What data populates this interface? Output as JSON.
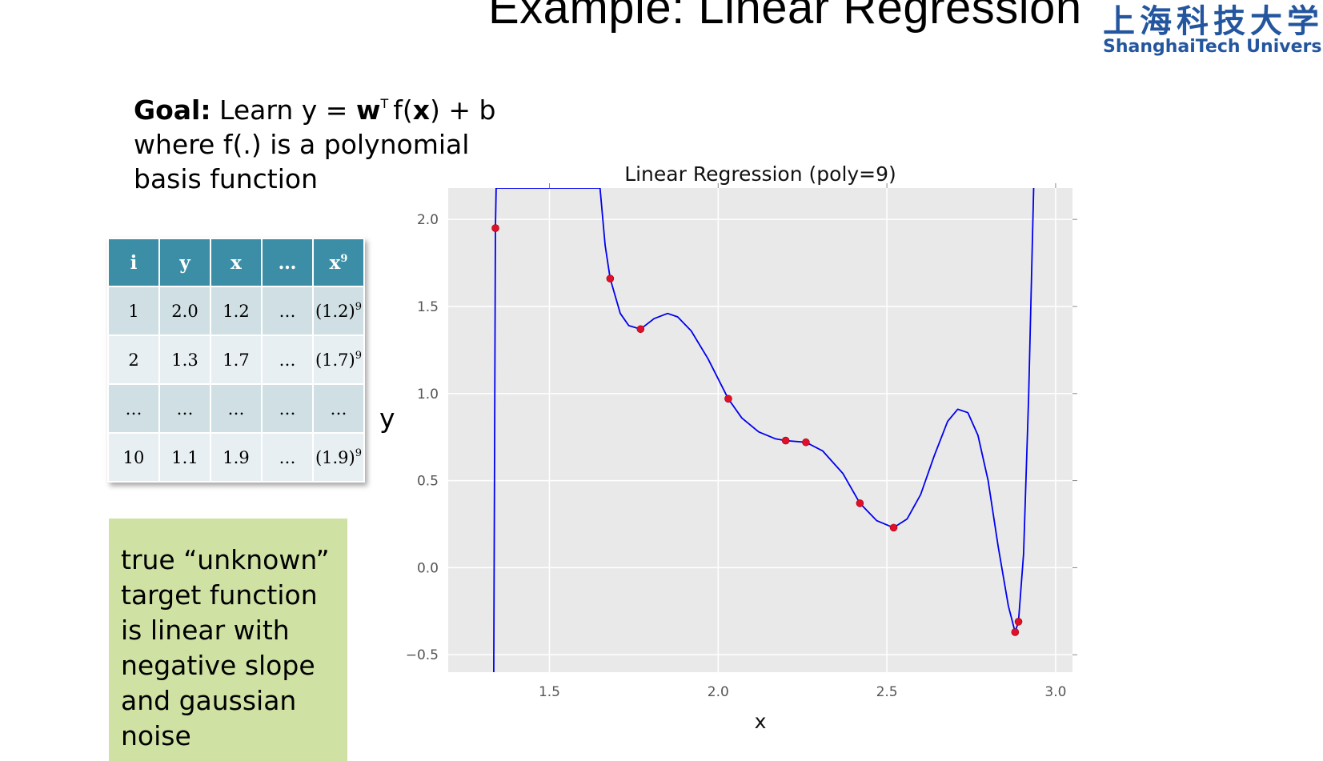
{
  "slide": {
    "title": "Example: Linear Regression",
    "logo_cn": "上海科技大学",
    "logo_en": "ShanghaiTech University"
  },
  "goal": {
    "label": "Goal:",
    "line1_a": "Learn y = ",
    "line1_w": "w",
    "line1_t": "T",
    "line1_b": "f(",
    "line1_x": "x",
    "line1_c": ") + b",
    "line2": "where f(.) is a polynomial",
    "line3": "basis function"
  },
  "table": {
    "headers": [
      "i",
      "y",
      "x",
      "…",
      "x"
    ],
    "header_x9_sup": "9",
    "rows": [
      [
        "1",
        "2.0",
        "1.2",
        "…",
        "(1.2)"
      ],
      [
        "2",
        "1.3",
        "1.7",
        "…",
        "(1.7)"
      ],
      [
        "…",
        "…",
        "…",
        "…",
        "…"
      ],
      [
        "10",
        "1.1",
        "1.9",
        "…",
        "(1.9)"
      ]
    ],
    "power_sup": "9"
  },
  "note": {
    "text": "true “unknown” target function is linear with negative slope and gaussian noise"
  },
  "outer_ylabel": "y",
  "chart_data": {
    "type": "scatter",
    "title": "Linear Regression (poly=9)",
    "xlabel": "x",
    "ylabel": "",
    "xlim": [
      1.2,
      3.05
    ],
    "ylim": [
      -0.6,
      2.18
    ],
    "xticks": [
      1.5,
      2.0,
      2.5,
      3.0
    ],
    "xtick_labels": [
      "1.5",
      "2.0",
      "2.5",
      "3.0"
    ],
    "yticks": [
      -0.5,
      0.0,
      0.5,
      1.0,
      1.5,
      2.0
    ],
    "ytick_labels": [
      "−0.5",
      "0.0",
      "0.5",
      "1.0",
      "1.5",
      "2.0"
    ],
    "grid": true,
    "background": "#e9e9e9",
    "point_color": "#e0102a",
    "line_color": "#0000ee",
    "points": [
      {
        "x": 1.34,
        "y": 1.95
      },
      {
        "x": 1.68,
        "y": 1.66
      },
      {
        "x": 1.77,
        "y": 1.37
      },
      {
        "x": 2.03,
        "y": 0.97
      },
      {
        "x": 2.2,
        "y": 0.73
      },
      {
        "x": 2.26,
        "y": 0.72
      },
      {
        "x": 2.42,
        "y": 0.37
      },
      {
        "x": 2.52,
        "y": 0.23
      },
      {
        "x": 2.88,
        "y": -0.37
      },
      {
        "x": 2.89,
        "y": -0.31
      }
    ],
    "fit_curve": [
      {
        "x": 1.335,
        "y": -0.6
      },
      {
        "x": 1.34,
        "y": 1.95
      },
      {
        "x": 1.342,
        "y": 2.18
      },
      {
        "x": 1.65,
        "y": 2.18
      },
      {
        "x": 1.665,
        "y": 1.85
      },
      {
        "x": 1.68,
        "y": 1.66
      },
      {
        "x": 1.71,
        "y": 1.46
      },
      {
        "x": 1.735,
        "y": 1.39
      },
      {
        "x": 1.77,
        "y": 1.37
      },
      {
        "x": 1.81,
        "y": 1.43
      },
      {
        "x": 1.85,
        "y": 1.46
      },
      {
        "x": 1.88,
        "y": 1.44
      },
      {
        "x": 1.92,
        "y": 1.36
      },
      {
        "x": 1.97,
        "y": 1.2
      },
      {
        "x": 2.03,
        "y": 0.97
      },
      {
        "x": 2.07,
        "y": 0.86
      },
      {
        "x": 2.12,
        "y": 0.78
      },
      {
        "x": 2.17,
        "y": 0.74
      },
      {
        "x": 2.2,
        "y": 0.73
      },
      {
        "x": 2.26,
        "y": 0.72
      },
      {
        "x": 2.31,
        "y": 0.67
      },
      {
        "x": 2.37,
        "y": 0.54
      },
      {
        "x": 2.42,
        "y": 0.37
      },
      {
        "x": 2.47,
        "y": 0.27
      },
      {
        "x": 2.52,
        "y": 0.23
      },
      {
        "x": 2.56,
        "y": 0.28
      },
      {
        "x": 2.6,
        "y": 0.42
      },
      {
        "x": 2.64,
        "y": 0.64
      },
      {
        "x": 2.68,
        "y": 0.84
      },
      {
        "x": 2.71,
        "y": 0.91
      },
      {
        "x": 2.74,
        "y": 0.89
      },
      {
        "x": 2.77,
        "y": 0.76
      },
      {
        "x": 2.8,
        "y": 0.5
      },
      {
        "x": 2.83,
        "y": 0.12
      },
      {
        "x": 2.86,
        "y": -0.22
      },
      {
        "x": 2.88,
        "y": -0.37
      },
      {
        "x": 2.89,
        "y": -0.31
      },
      {
        "x": 2.905,
        "y": 0.08
      },
      {
        "x": 2.92,
        "y": 0.98
      },
      {
        "x": 2.935,
        "y": 2.18
      }
    ]
  }
}
